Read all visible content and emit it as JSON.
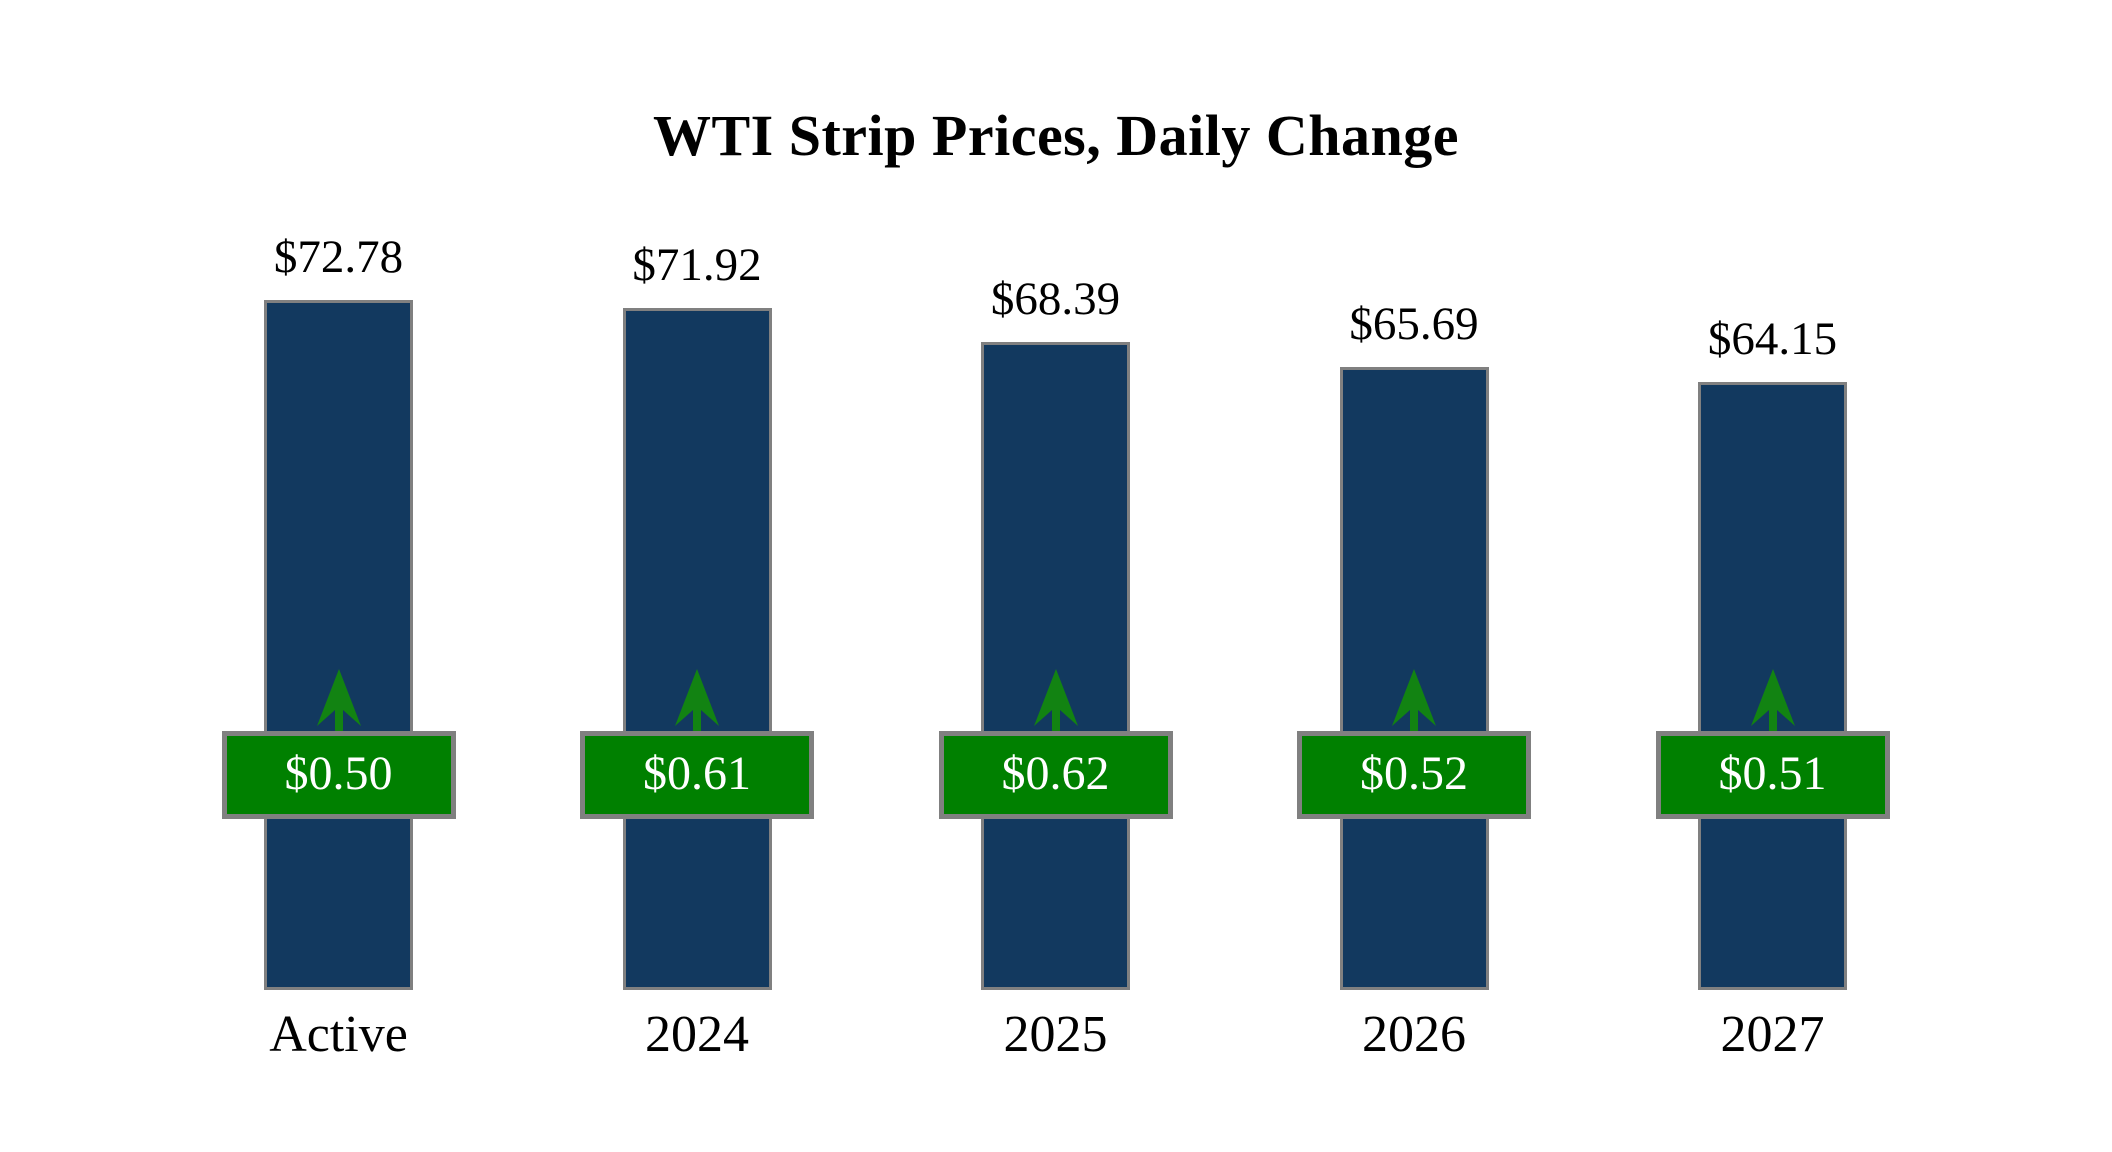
{
  "title": "WTI Strip Prices, Daily Change",
  "colors": {
    "background": "#ffffff",
    "bar_fill": "#12395f",
    "bar_border": "#808080",
    "badge_fill": "#008000",
    "badge_border": "#808080",
    "badge_text": "#ffffff",
    "arrow": "#128312",
    "label_text": "#000000"
  },
  "chart_data": {
    "type": "bar",
    "title": "WTI Strip Prices, Daily Change",
    "categories": [
      "Active",
      "2024",
      "2025",
      "2026",
      "2027"
    ],
    "series": [
      {
        "name": "Strip Price",
        "values": [
          72.78,
          71.92,
          68.39,
          65.69,
          64.15
        ],
        "labels": [
          "$72.78",
          "$71.92",
          "$68.39",
          "$65.69",
          "$64.15"
        ],
        "label_position": "above-bar"
      },
      {
        "name": "Daily Change",
        "values": [
          0.5,
          0.61,
          0.62,
          0.52,
          0.51
        ],
        "labels": [
          "$0.50",
          "$0.61",
          "$0.62",
          "$0.52",
          "$0.51"
        ],
        "label_position": "badge-on-bar",
        "direction": "up"
      }
    ],
    "value_axis": {
      "min": 0,
      "visible": false
    },
    "grid": false,
    "legend": "none",
    "xlabel": "",
    "ylabel": ""
  }
}
